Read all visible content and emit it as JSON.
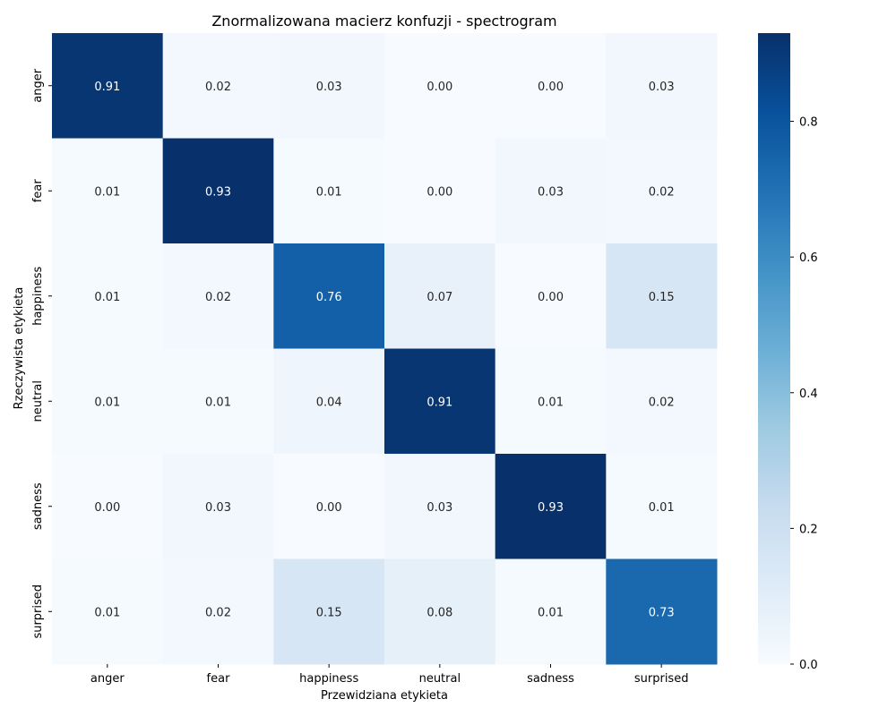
{
  "chart_data": {
    "type": "heatmap",
    "title": "Znormalizowana macierz konfuzji - spectrogram",
    "xlabel": "Przewidziana etykieta",
    "ylabel": "Rzeczywista etykieta",
    "x_categories": [
      "anger",
      "fear",
      "happiness",
      "neutral",
      "sadness",
      "surprised"
    ],
    "y_categories": [
      "anger",
      "fear",
      "happiness",
      "neutral",
      "sadness",
      "surprised"
    ],
    "values": [
      [
        0.91,
        0.02,
        0.03,
        0.0,
        0.0,
        0.03
      ],
      [
        0.01,
        0.93,
        0.01,
        0.0,
        0.03,
        0.02
      ],
      [
        0.01,
        0.02,
        0.76,
        0.07,
        0.0,
        0.15
      ],
      [
        0.01,
        0.01,
        0.04,
        0.91,
        0.01,
        0.02
      ],
      [
        0.0,
        0.03,
        0.0,
        0.03,
        0.93,
        0.01
      ],
      [
        0.01,
        0.02,
        0.15,
        0.08,
        0.01,
        0.73
      ]
    ],
    "value_labels": [
      [
        "0.91",
        "0.02",
        "0.03",
        "0.00",
        "0.00",
        "0.03"
      ],
      [
        "0.01",
        "0.93",
        "0.01",
        "0.00",
        "0.03",
        "0.02"
      ],
      [
        "0.01",
        "0.02",
        "0.76",
        "0.07",
        "0.00",
        "0.15"
      ],
      [
        "0.01",
        "0.01",
        "0.04",
        "0.91",
        "0.01",
        "0.02"
      ],
      [
        "0.00",
        "0.03",
        "0.00",
        "0.03",
        "0.93",
        "0.01"
      ],
      [
        "0.01",
        "0.02",
        "0.15",
        "0.08",
        "0.01",
        "0.73"
      ]
    ],
    "colormap": "Blues",
    "colorbar": {
      "range": [
        0.0,
        0.93
      ],
      "ticks": [
        0.0,
        0.2,
        0.4,
        0.6,
        0.8
      ],
      "tick_labels": [
        "0.0",
        "0.2",
        "0.4",
        "0.6",
        "0.8"
      ]
    },
    "grid": false,
    "legend": "none"
  }
}
